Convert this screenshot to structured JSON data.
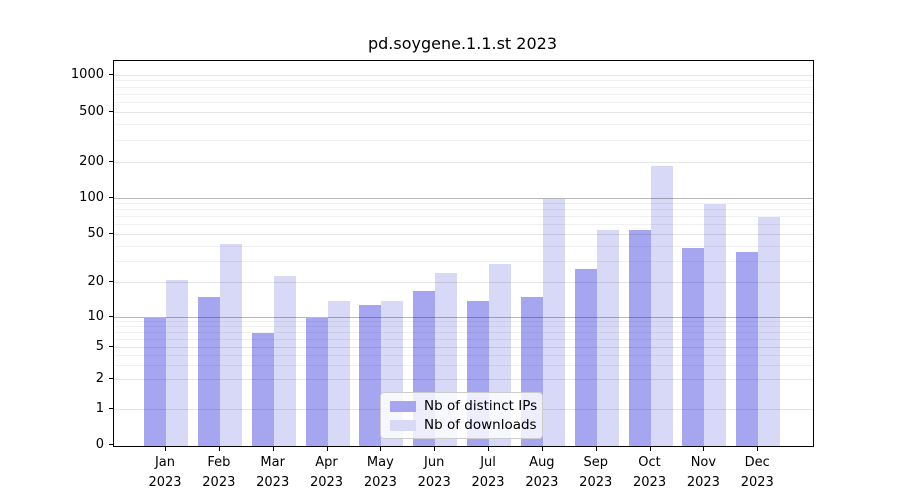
{
  "title": "pd.soygene.1.1.st 2023",
  "legend": {
    "items": [
      {
        "label": "Nb of distinct IPs",
        "color": "#a6a6f0"
      },
      {
        "label": "Nb of downloads",
        "color": "#d8d8f7"
      }
    ]
  },
  "chart_data": {
    "type": "bar",
    "title": "pd.soygene.1.1.st 2023",
    "categories": [
      "Jan 2023",
      "Feb 2023",
      "Mar 2023",
      "Apr 2023",
      "May 2023",
      "Jun 2023",
      "Jul 2023",
      "Aug 2023",
      "Sep 2023",
      "Oct 2023",
      "Nov 2023",
      "Dec 2023"
    ],
    "series": [
      {
        "name": "Nb of distinct IPs",
        "color": "#a6a6f0",
        "values": [
          10,
          15,
          7,
          10,
          13,
          17,
          14,
          15,
          26,
          55,
          39,
          36
        ]
      },
      {
        "name": "Nb of downloads",
        "color": "#d8d8f7",
        "values": [
          21,
          42,
          23,
          14,
          14,
          24,
          29,
          100,
          55,
          187,
          90,
          70
        ]
      }
    ],
    "xlabel": "",
    "ylabel": "",
    "y_scale": "log-like with 0 baseline",
    "y_ticks": [
      0,
      1,
      2,
      5,
      10,
      20,
      50,
      100,
      200,
      500,
      1000
    ],
    "y_minor_gridlines": [
      3,
      4,
      6,
      7,
      8,
      9,
      30,
      40,
      60,
      70,
      80,
      90,
      300,
      400,
      600,
      700,
      800,
      900
    ],
    "ylim": [
      0,
      1000
    ],
    "grid": true,
    "legend_position": "lower center",
    "colors": {
      "major_gridline": "#b5b5b5",
      "tick_gridline": "#e6e6e6",
      "minor_gridline": "#f0f0f0",
      "spine": "#000000"
    }
  }
}
